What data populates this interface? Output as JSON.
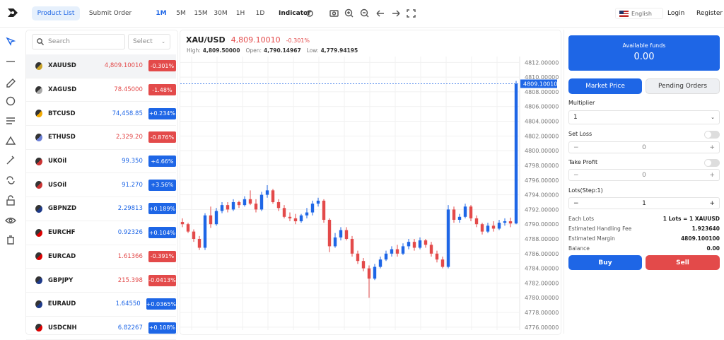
{
  "topbar": {
    "tabs": [
      "Product List",
      "Submit Order"
    ],
    "timeframes": [
      "1M",
      "5M",
      "15M",
      "30M",
      "1H",
      "1D"
    ],
    "indicator": "Indicator",
    "language": "English",
    "login": "Login",
    "register": "Register"
  },
  "list": {
    "search": "Search",
    "select": "Select",
    "rows": [
      [
        "XAUUSD",
        "4,809.10010",
        "-0.301%"
      ],
      [
        "XAGUSD",
        "78.45000",
        "-1.48%"
      ],
      [
        "BTCUSD",
        "74,458.85",
        "+0.234%"
      ],
      [
        "ETHUSD",
        "2,329.20",
        "-0.876%"
      ],
      [
        "UKOil",
        "99.350",
        "+4.66%"
      ],
      [
        "USOil",
        "91.270",
        "+3.56%"
      ],
      [
        "GBPNZD",
        "2.29813",
        "+0.189%"
      ],
      [
        "EURCHF",
        "0.92326",
        "+0.104%"
      ],
      [
        "EURCAD",
        "1.61366",
        "-0.391%"
      ],
      [
        "GBPJPY",
        "215.398",
        "-0.0413%"
      ],
      [
        "EURAUD",
        "1.64550",
        "+0.0365%"
      ],
      [
        "USDCNH",
        "6.82267",
        "+0.108%"
      ]
    ]
  },
  "chart": {
    "symbol": "XAU/USD",
    "price": "4,809.10010",
    "change": "-0.301%",
    "high_label": "High:",
    "high": "4,809.50000",
    "open_label": "Open:",
    "open": "4,790.14967",
    "low_label": "Low:",
    "low": "4,779.94195",
    "up_color": "#1e66e6",
    "down_color": "#e34a4a",
    "ylim": [
      4775.6,
      4812.8
    ],
    "yticks": [
      {
        "value": 4776,
        "label": "4776.00000"
      },
      {
        "value": 4778,
        "label": "4778.00000"
      },
      {
        "value": 4780,
        "label": "4780.00000"
      },
      {
        "value": 4782,
        "label": "4782.00000"
      },
      {
        "value": 4784,
        "label": "4784.00000"
      },
      {
        "value": 4786,
        "label": "4786.00000"
      },
      {
        "value": 4788,
        "label": "4788.00000"
      },
      {
        "value": 4790,
        "label": "4790.00000"
      },
      {
        "value": 4792,
        "label": "4792.00000"
      },
      {
        "value": 4794,
        "label": "4794.00000"
      },
      {
        "value": 4796,
        "label": "4796.00000"
      },
      {
        "value": 4798,
        "label": "4798.00000"
      },
      {
        "value": 4800,
        "label": "4800.00000"
      },
      {
        "value": 4802,
        "label": "4802.00000"
      },
      {
        "value": 4804,
        "label": "4804.00000"
      },
      {
        "value": 4806,
        "label": "4806.00000"
      },
      {
        "value": 4808,
        "label": "4808.00000"
      },
      {
        "value": 4810,
        "label": "4810.00000"
      },
      {
        "value": 4812,
        "label": "4812.00000"
      }
    ],
    "price_line": {
      "value": 4809.1001,
      "label": "4809.10010"
    },
    "candles": [
      [
        4790.3,
        4790.8,
        4789.6,
        4790.0
      ],
      [
        4790.0,
        4790.2,
        4788.8,
        4789.0
      ],
      [
        4789.0,
        4789.3,
        4787.6,
        4788.0
      ],
      [
        4788.0,
        4788.4,
        4786.5,
        4786.8
      ],
      [
        4786.8,
        4791.5,
        4786.5,
        4791.2
      ],
      [
        4791.2,
        4792.4,
        4789.5,
        4790.0
      ],
      [
        4790.0,
        4792.2,
        4789.8,
        4791.8
      ],
      [
        4791.8,
        4793.0,
        4791.5,
        4792.6
      ],
      [
        4792.6,
        4793.0,
        4791.6,
        4792.0
      ],
      [
        4792.0,
        4793.4,
        4791.8,
        4793.0
      ],
      [
        4793.0,
        4793.2,
        4792.2,
        4792.6
      ],
      [
        4792.6,
        4793.8,
        4792.4,
        4793.4
      ],
      [
        4793.4,
        4794.6,
        4792.6,
        4792.8
      ],
      [
        4792.8,
        4793.4,
        4791.6,
        4792.0
      ],
      [
        4792.0,
        4794.4,
        4791.8,
        4794.0
      ],
      [
        4794.0,
        4795.3,
        4793.6,
        4794.6
      ],
      [
        4794.6,
        4794.8,
        4792.8,
        4793.0
      ],
      [
        4793.0,
        4793.4,
        4791.8,
        4792.2
      ],
      [
        4792.2,
        4792.6,
        4790.8,
        4791.0
      ],
      [
        4791.0,
        4791.6,
        4790.4,
        4790.8
      ],
      [
        4790.8,
        4791.4,
        4790.0,
        4790.4
      ],
      [
        4790.4,
        4791.4,
        4790.2,
        4791.2
      ],
      [
        4791.2,
        4792.2,
        4790.8,
        4791.6
      ],
      [
        4791.6,
        4793.2,
        4791.2,
        4792.8
      ],
      [
        4792.8,
        4793.6,
        4792.4,
        4793.2
      ],
      [
        4793.2,
        4793.4,
        4790.2,
        4790.6
      ],
      [
        4790.6,
        4790.8,
        4786.2,
        4787.0
      ],
      [
        4787.0,
        4788.8,
        4786.8,
        4788.2
      ],
      [
        4788.2,
        4789.6,
        4787.8,
        4789.2
      ],
      [
        4789.2,
        4789.6,
        4787.8,
        4788.0
      ],
      [
        4788.0,
        4788.4,
        4785.6,
        4786.0
      ],
      [
        4786.0,
        4786.4,
        4784.6,
        4785.0
      ],
      [
        4785.0,
        4785.4,
        4783.6,
        4784.0
      ],
      [
        4784.0,
        4784.4,
        4780.0,
        4782.6
      ],
      [
        4782.6,
        4784.6,
        4782.4,
        4784.2
      ],
      [
        4784.2,
        4785.6,
        4784.0,
        4785.2
      ],
      [
        4785.2,
        4786.4,
        4785.0,
        4786.0
      ],
      [
        4786.0,
        4787.0,
        4785.6,
        4786.6
      ],
      [
        4786.6,
        4787.2,
        4785.6,
        4786.0
      ],
      [
        4786.0,
        4787.4,
        4785.8,
        4787.0
      ],
      [
        4787.0,
        4788.0,
        4786.6,
        4787.6
      ],
      [
        4787.6,
        4788.0,
        4786.4,
        4786.8
      ],
      [
        4786.8,
        4788.2,
        4786.6,
        4787.8
      ],
      [
        4787.8,
        4788.0,
        4786.8,
        4787.2
      ],
      [
        4787.2,
        4787.6,
        4785.6,
        4786.0
      ],
      [
        4786.0,
        4786.4,
        4784.8,
        4785.2
      ],
      [
        4785.2,
        4785.6,
        4784.0,
        4784.2
      ],
      [
        4784.2,
        4792.6,
        4784.0,
        4792.0
      ],
      [
        4792.0,
        4792.4,
        4790.2,
        4790.6
      ],
      [
        4790.6,
        4791.4,
        4790.2,
        4791.0
      ],
      [
        4791.0,
        4792.8,
        4790.8,
        4792.4
      ],
      [
        4792.4,
        4792.6,
        4790.4,
        4790.8
      ],
      [
        4790.8,
        4791.2,
        4789.6,
        4790.0
      ],
      [
        4790.0,
        4790.2,
        4788.6,
        4789.0
      ],
      [
        4789.0,
        4790.2,
        4788.8,
        4789.8
      ],
      [
        4789.8,
        4790.4,
        4789.0,
        4789.4
      ],
      [
        4789.4,
        4790.6,
        4789.2,
        4790.2
      ],
      [
        4790.2,
        4790.8,
        4789.8,
        4790.4
      ],
      [
        4790.4,
        4790.9,
        4789.6,
        4790.1
      ],
      [
        4790.1,
        4809.5,
        4790.0,
        4809.1
      ]
    ]
  },
  "order": {
    "funds_label": "Available funds",
    "funds": "0.00",
    "tabs": [
      "Market Price",
      "Pending Orders"
    ],
    "multiplier_label": "Multiplier",
    "multiplier": "1",
    "set_loss": "Set Loss",
    "set_loss_value": "0",
    "take_profit": "Take Profit",
    "take_profit_value": "0",
    "lots_label": "Lots(Step:1)",
    "lots": "1",
    "info": [
      [
        "Each Lots",
        "1 Lots = 1 XAUUSD"
      ],
      [
        "Estimated Handling Fee",
        "1.923640"
      ],
      [
        "Estimated Margin",
        "4809.100100"
      ],
      [
        "Balance",
        "0.00"
      ]
    ],
    "buy": "Buy",
    "sell": "Sell"
  }
}
